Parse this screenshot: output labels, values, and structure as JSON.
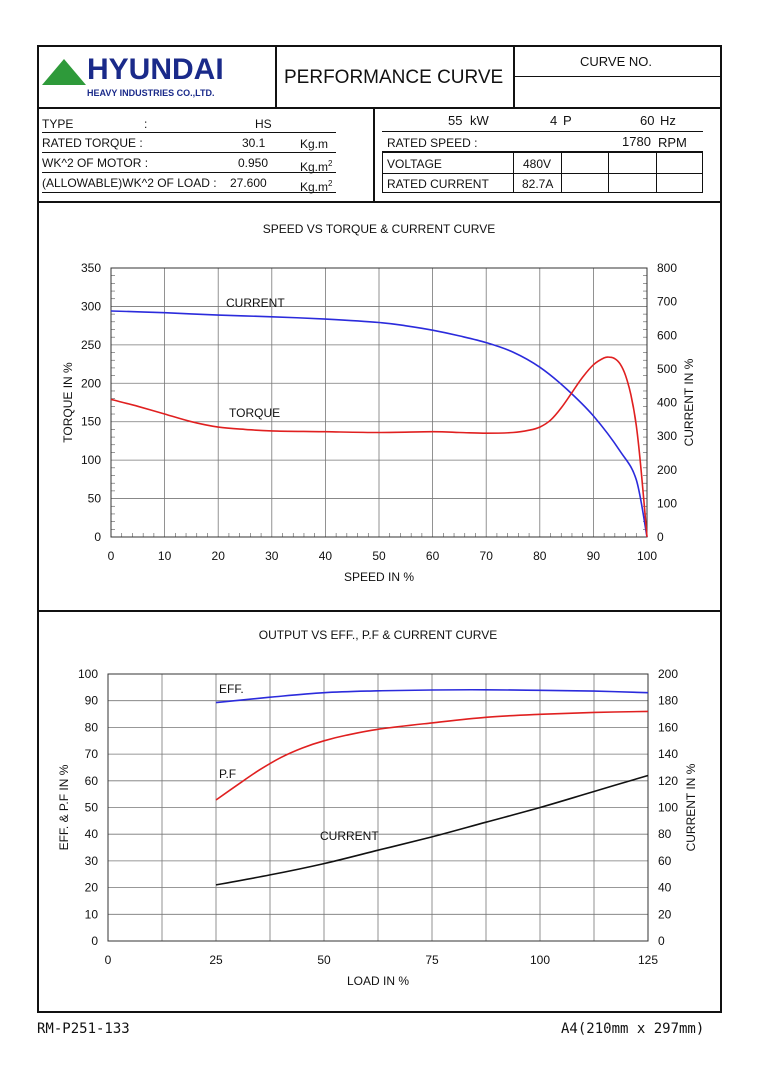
{
  "header": {
    "brand": "HYUNDAI",
    "brand_sub": "HEAVY INDUSTRIES CO.,LTD.",
    "title": "PERFORMANCE CURVE",
    "curve_no_label": "CURVE NO.",
    "curve_no_value": ""
  },
  "specs_left": {
    "type_label": "TYPE",
    "type_colon": ":",
    "type_value": "HS",
    "torque_label": "RATED TORQUE :",
    "torque_value": "30.1",
    "torque_unit": "Kg.m",
    "wk_motor_label": "WK^2 OF MOTOR :",
    "wk_motor_value": "0.950",
    "wk_motor_unit": "Kg.m",
    "wk_load_label": "(ALLOWABLE)WK^2 OF LOAD :",
    "wk_load_value": "27.600",
    "wk_load_unit": "Kg.m",
    "unit_sup": "2"
  },
  "specs_right": {
    "power_value": "55",
    "power_unit": "kW",
    "poles_value": "4",
    "poles_unit": "P",
    "freq_value": "60",
    "freq_unit": "Hz",
    "speed_label": "RATED SPEED :",
    "speed_value": "1780",
    "speed_unit": "RPM",
    "voltage_label": "VOLTAGE",
    "voltage_value": "480V",
    "current_label": "RATED CURRENT",
    "current_value": "82.7A"
  },
  "footer": {
    "doc_code": "RM-P251-133",
    "paper": "A4(210mm x 297mm)"
  },
  "colors": {
    "blue": "#2b2bdc",
    "red": "#e02020",
    "black": "#111111",
    "brand": "#1a2a8a",
    "logo_green": "#2e9a3a"
  },
  "chart_data": [
    {
      "type": "line",
      "title": "SPEED VS TORQUE & CURRENT CURVE",
      "xlabel": "SPEED IN %",
      "ylabel": "TORQUE IN %",
      "y2label": "CURRENT IN %",
      "xlim": [
        0,
        100
      ],
      "ylim": [
        0,
        350
      ],
      "y2lim": [
        0,
        800
      ],
      "xticks": [
        "0",
        "10",
        "20",
        "30",
        "40",
        "50",
        "60",
        "70",
        "80",
        "90",
        "100"
      ],
      "yticks": [
        "0",
        "50",
        "100",
        "150",
        "200",
        "250",
        "300",
        "350"
      ],
      "y2ticks": [
        "0",
        "100",
        "200",
        "300",
        "400",
        "500",
        "600",
        "700",
        "800"
      ],
      "series": [
        {
          "name": "CURRENT",
          "axis": "y2",
          "color": "blue",
          "x": [
            0,
            10,
            20,
            30,
            40,
            50,
            55,
            60,
            65,
            70,
            75,
            80,
            85,
            90,
            95,
            98,
            100
          ],
          "y": [
            672,
            667,
            660,
            655,
            648,
            638,
            628,
            615,
            598,
            578,
            550,
            505,
            440,
            360,
            255,
            170,
            0
          ]
        },
        {
          "name": "TORQUE",
          "axis": "y",
          "color": "red",
          "x": [
            0,
            5,
            10,
            15,
            20,
            25,
            30,
            40,
            50,
            60,
            65,
            70,
            75,
            78,
            80,
            82,
            84,
            86,
            88,
            90,
            92,
            93,
            94,
            95,
            96,
            97,
            98,
            99,
            100
          ],
          "y": [
            179,
            170,
            160,
            150,
            143,
            140,
            138,
            137,
            136,
            137,
            136,
            135,
            136,
            139,
            143,
            152,
            168,
            188,
            208,
            224,
            233,
            234,
            232,
            225,
            210,
            185,
            145,
            80,
            0
          ]
        }
      ]
    },
    {
      "type": "line",
      "title": "OUTPUT VS EFF., P.F & CURRENT CURVE",
      "xlabel": "LOAD IN %",
      "ylabel": "EFF. & P.F IN %",
      "y2label": "CURRENT IN %",
      "xlim": [
        0,
        125
      ],
      "ylim": [
        0,
        100
      ],
      "y2lim": [
        0,
        200
      ],
      "xticks": [
        "0",
        "25",
        "50",
        "75",
        "100",
        "125"
      ],
      "yticks": [
        "0",
        "10",
        "20",
        "30",
        "40",
        "50",
        "60",
        "70",
        "80",
        "90",
        "100"
      ],
      "y2ticks": [
        "0",
        "20",
        "40",
        "60",
        "80",
        "100",
        "120",
        "140",
        "160",
        "180",
        "200"
      ],
      "series": [
        {
          "name": "EFF.",
          "axis": "y",
          "color": "blue",
          "x": [
            25,
            37.5,
            50,
            62.5,
            75,
            87.5,
            100,
            112.5,
            125
          ],
          "y": [
            89.3,
            91.3,
            93.0,
            93.7,
            94.0,
            94.1,
            93.9,
            93.6,
            93.0
          ]
        },
        {
          "name": "P.F",
          "axis": "y",
          "color": "red",
          "x": [
            25,
            30,
            35,
            40,
            45,
            50,
            55,
            62.5,
            75,
            87.5,
            100,
            112.5,
            125
          ],
          "y": [
            52.8,
            58.5,
            64,
            68.7,
            72.3,
            75,
            77,
            79.3,
            81.7,
            83.8,
            84.9,
            85.6,
            86.0
          ]
        },
        {
          "name": "CURRENT",
          "axis": "y2",
          "color": "black",
          "x": [
            25,
            37.5,
            50,
            62.5,
            75,
            87.5,
            100,
            112.5,
            125
          ],
          "y": [
            42,
            49.5,
            58,
            68,
            78,
            89,
            100,
            112,
            124
          ]
        }
      ]
    }
  ]
}
